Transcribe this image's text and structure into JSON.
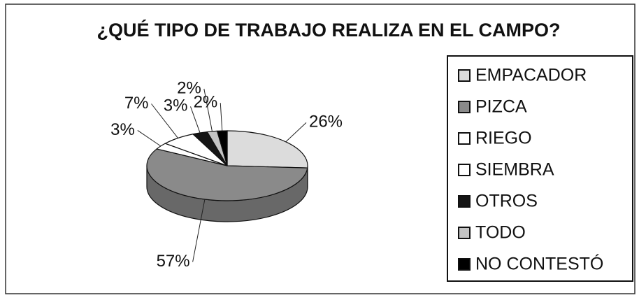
{
  "chart_data": {
    "type": "pie3d",
    "title": "¿QUÉ TIPO DE TRABAJO REALIZA EN EL CAMPO?",
    "categories": [
      "EMPACADOR",
      "PIZCA",
      "RIEGO",
      "SIEMBRA",
      "OTROS",
      "TODO",
      "NO CONTESTÓ"
    ],
    "values": [
      26,
      57,
      3,
      7,
      3,
      2,
      2
    ],
    "value_labels": [
      "26%",
      "57%",
      "3%",
      "7%",
      "3%",
      "2%",
      "2%"
    ],
    "colors": [
      "#dcdcdc",
      "#8a8a8a",
      "#ffffff",
      "#ffffff",
      "#151515",
      "#c4c4c4",
      "#000000"
    ],
    "legend": "right"
  }
}
